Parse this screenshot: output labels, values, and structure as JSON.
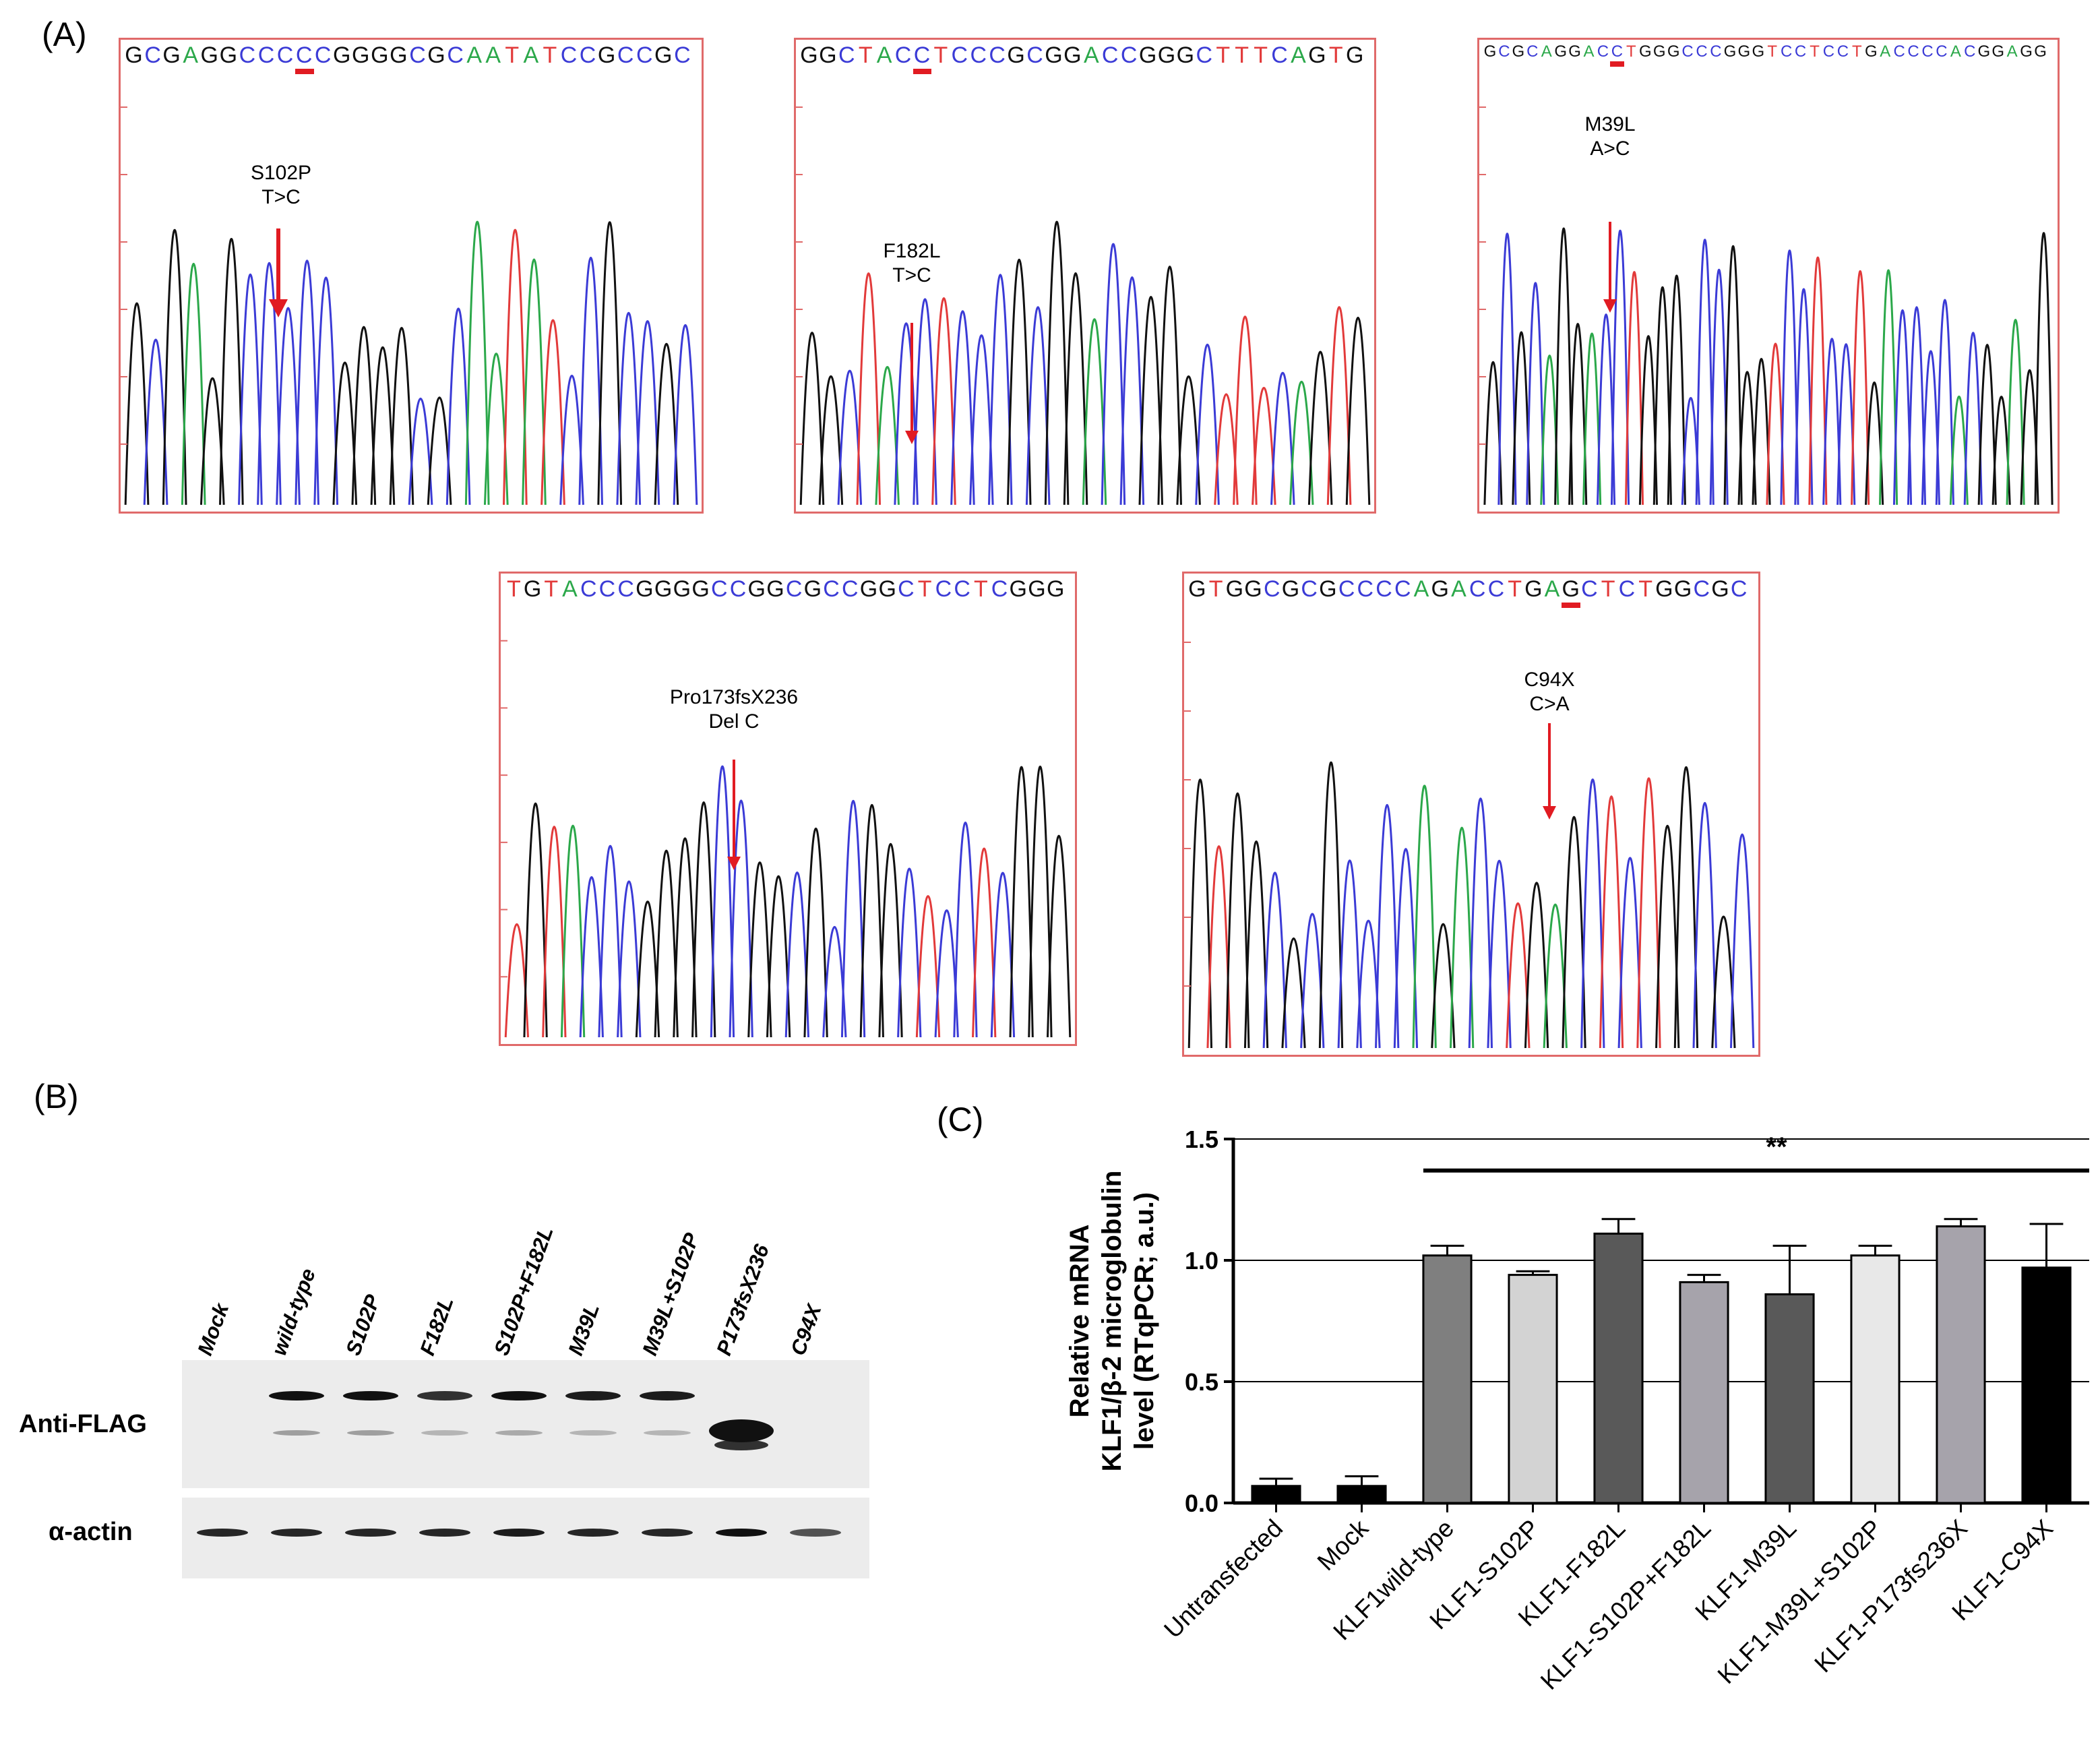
{
  "panels": {
    "a": "(A)",
    "b": "(B)",
    "c": "(C)"
  },
  "traces": [
    {
      "sequence": "GCGAGGCCCCCGGGGCGCAATATCCGCCGC",
      "mutation": "S102P",
      "change": "T>C",
      "highlight_index": 9,
      "peak_seed": 1
    },
    {
      "sequence": "GGCTACCTCCCGCGGACCGGGCTTTCAGTG",
      "mutation": "F182L",
      "change": "T>C",
      "highlight_index": 6,
      "peak_seed": 2
    },
    {
      "sequence": "GCGCAGGACCTGGGCCCGGGTCCTCCTGACCCCACGGAGG",
      "mutation": "M39L",
      "change": "A>C",
      "highlight_index": 9,
      "peak_seed": 3
    },
    {
      "sequence": "TGTACCCGGGGCCGGCGCCGGCTCCTCGGG",
      "mutation": "Pro173fsX236",
      "change": "Del C",
      "highlight_index": -1,
      "peak_seed": 4
    },
    {
      "sequence": "GTGGCGCGCCCCAGACCTGAGCTCTGGCGC",
      "mutation": "C94X",
      "change": "C>A",
      "highlight_index": 20,
      "peak_seed": 5
    }
  ],
  "blot": {
    "lanes": [
      "Mock",
      "wild-type",
      "S102P",
      "F182L",
      "S102P+F182L",
      "M39L",
      "M39L+S102P",
      "P173fsX236",
      "C94X"
    ],
    "rows": [
      "Anti-FLAG",
      "α-actin"
    ],
    "flag_upper": [
      0,
      1,
      1,
      0.85,
      1,
      0.95,
      0.95,
      0,
      0
    ],
    "flag_lower": [
      0,
      0.35,
      0.35,
      0.25,
      0.3,
      0.25,
      0.25,
      0,
      0
    ],
    "flag_truncated": [
      0,
      0,
      0,
      0,
      0,
      0,
      0,
      1,
      0
    ],
    "actin": [
      0.9,
      0.9,
      0.9,
      0.9,
      0.95,
      0.9,
      0.9,
      1,
      0.7
    ]
  },
  "chart_data": {
    "type": "bar",
    "ylabel_lines": [
      "Relative mRNA",
      "KLF1/β-2 microglobulin",
      "level (RTqPCR; a.u.)"
    ],
    "ylim": [
      0,
      1.5
    ],
    "yticks": [
      0.0,
      0.5,
      1.0,
      1.5
    ],
    "ytick_labels": [
      "0.0",
      "0.5",
      "1.0",
      "1.5"
    ],
    "categories": [
      "Untransfected",
      "Mock",
      "KLF1wild-type",
      "KLF1-S102P",
      "KLF1-F182L",
      "KLF1-S102P+F182L",
      "KLF1-M39L",
      "KLF1-M39L+S102P",
      "KLF1-P173fs236X",
      "KLF1-C94X"
    ],
    "values": [
      0.07,
      0.07,
      1.02,
      0.94,
      1.11,
      0.91,
      0.86,
      1.02,
      1.14,
      0.97
    ],
    "errors": [
      0.03,
      0.04,
      0.04,
      0.015,
      0.06,
      0.03,
      0.2,
      0.04,
      0.03,
      0.18
    ],
    "bar_colors": [
      "#000000",
      "#000000",
      "#7f7f7f",
      "#d3d3d3",
      "#595959",
      "#a6a3ab",
      "#595959",
      "#e8e8e8",
      "#a6a3ab",
      "#000000"
    ],
    "significance": "**",
    "grid": true
  }
}
